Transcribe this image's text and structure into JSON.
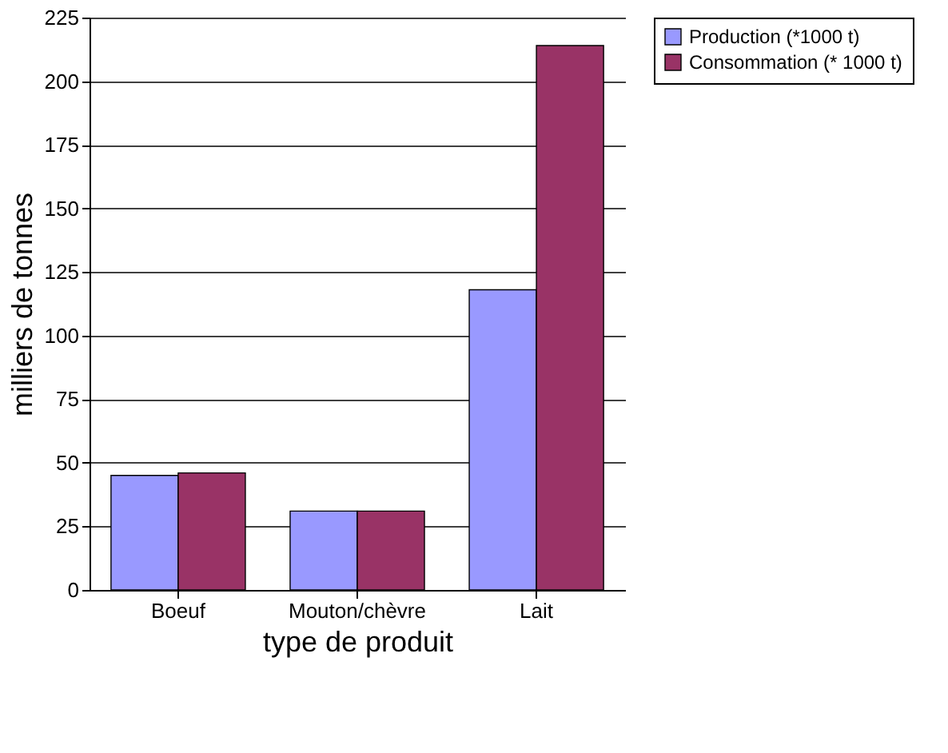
{
  "chart_data": {
    "type": "bar",
    "xlabel": "type de produit",
    "ylabel": "milliers de tonnes",
    "categories": [
      "Boeuf",
      "Mouton/chèvre",
      "Lait"
    ],
    "series": [
      {
        "name": "Production (*1000 t)",
        "color": "#9999ff",
        "values": [
          45,
          31,
          118
        ]
      },
      {
        "name": "Consommation (* 1000 t)",
        "color": "#993366",
        "values": [
          46,
          31,
          214
        ]
      }
    ],
    "ylim": [
      0,
      225
    ],
    "yticks": [
      0,
      25,
      50,
      75,
      100,
      125,
      150,
      175,
      200,
      225
    ],
    "grid": "y",
    "legend": "right"
  }
}
